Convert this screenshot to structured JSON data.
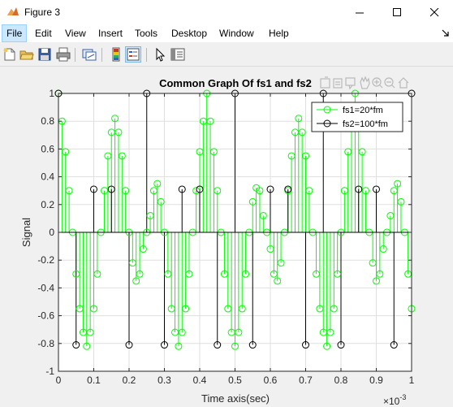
{
  "window": {
    "title": "Figure 3",
    "controls": [
      "minimize",
      "maximize",
      "close"
    ]
  },
  "menu": {
    "items": [
      "File",
      "Edit",
      "View",
      "Insert",
      "Tools",
      "Desktop",
      "Window",
      "Help"
    ],
    "active": "File"
  },
  "toolbar": {
    "buttons": [
      "new-figure-icon",
      "open-file-icon",
      "save-icon",
      "print-icon",
      "link-plot-icon",
      "insert-colorbar-icon",
      "insert-legend-icon",
      "pointer-icon",
      "property-inspector-icon"
    ]
  },
  "axes_toolbar": {
    "buttons": [
      "export-icon",
      "brush-icon",
      "data-tips-icon",
      "pan-icon",
      "zoom-in-icon",
      "zoom-out-icon",
      "home-icon"
    ]
  },
  "chart_data": {
    "type": "stem",
    "title": "Common Graph Of fs1 and fs2",
    "xlabel": "Time axis(sec)",
    "ylabel": "Signal",
    "x_exponent_label": "×10",
    "x_exponent_value": "-3",
    "xlim": [
      0,
      1
    ],
    "ylim": [
      -1,
      1
    ],
    "xticks": [
      "0",
      "0.1",
      "0.2",
      "0.3",
      "0.4",
      "0.5",
      "0.6",
      "0.7",
      "0.8",
      "0.9",
      "1"
    ],
    "yticks": [
      "-1",
      "-0.8",
      "-0.6",
      "-0.4",
      "-0.2",
      "0",
      "0.2",
      "0.4",
      "0.6",
      "0.8",
      "1"
    ],
    "grid": true,
    "legend_position": "top-right",
    "series": [
      {
        "name": "fs1=20*fm",
        "color": "#00ff00",
        "x": [
          0,
          0.01,
          0.02,
          0.03,
          0.04,
          0.05,
          0.06,
          0.07,
          0.08,
          0.09,
          0.1,
          0.11,
          0.12,
          0.13,
          0.14,
          0.15,
          0.16,
          0.17,
          0.18,
          0.19,
          0.2,
          0.21,
          0.22,
          0.23,
          0.24,
          0.25,
          0.26,
          0.27,
          0.28,
          0.29,
          0.3,
          0.31,
          0.32,
          0.33,
          0.34,
          0.35,
          0.36,
          0.37,
          0.38,
          0.39,
          0.4,
          0.41,
          0.42,
          0.43,
          0.44,
          0.45,
          0.46,
          0.47,
          0.48,
          0.49,
          0.5,
          0.51,
          0.52,
          0.53,
          0.54,
          0.55,
          0.56,
          0.57,
          0.58,
          0.59,
          0.6,
          0.61,
          0.62,
          0.63,
          0.64,
          0.65,
          0.66,
          0.67,
          0.68,
          0.69,
          0.7,
          0.71,
          0.72,
          0.73,
          0.74,
          0.75,
          0.76,
          0.77,
          0.78,
          0.79,
          0.8,
          0.81,
          0.82,
          0.83,
          0.84,
          0.85,
          0.86,
          0.87,
          0.88,
          0.89,
          0.9,
          0.91,
          0.92,
          0.93,
          0.94,
          0.95,
          0.96,
          0.97,
          0.98,
          0.99,
          1
        ],
        "values": [
          1,
          0.8,
          0.58,
          0.3,
          0,
          -0.3,
          -0.55,
          -0.72,
          -0.82,
          -0.72,
          -0.55,
          -0.3,
          0,
          0.3,
          0.55,
          0.72,
          0.82,
          0.72,
          0.55,
          0.3,
          0,
          -0.22,
          -0.35,
          -0.3,
          -0.12,
          0,
          0.12,
          0.3,
          0.35,
          0.22,
          0,
          -0.3,
          -0.55,
          -0.72,
          -0.82,
          -0.72,
          -0.55,
          -0.3,
          0,
          0.3,
          0.58,
          0.8,
          1,
          0.8,
          0.58,
          0.3,
          0,
          -0.3,
          -0.55,
          -0.72,
          -0.82,
          -0.72,
          -0.55,
          -0.3,
          0,
          0.22,
          0.32,
          0.3,
          0.12,
          0,
          -0.12,
          -0.3,
          -0.35,
          -0.22,
          0,
          0.3,
          0.55,
          0.72,
          0.82,
          0.72,
          0.55,
          0.3,
          0,
          -0.3,
          -0.55,
          -0.72,
          -0.82,
          -0.72,
          -0.55,
          -0.3,
          0,
          0.3,
          0.58,
          0.8,
          1,
          0.8,
          0.58,
          0.3,
          0,
          -0.22,
          -0.35,
          -0.3,
          -0.12,
          0,
          0.12,
          0.3,
          0.35,
          0.22,
          0,
          -0.3,
          -0.55
        ]
      },
      {
        "name": "fs2=100*fm",
        "color": "#000000",
        "x": [
          0,
          0.05,
          0.1,
          0.15,
          0.2,
          0.25,
          0.3,
          0.35,
          0.4,
          0.45,
          0.5,
          0.55,
          0.6,
          0.65,
          0.7,
          0.75,
          0.8,
          0.85,
          0.9,
          0.95,
          1
        ],
        "values": [
          1,
          -0.81,
          0.31,
          0.31,
          -0.81,
          1,
          -0.81,
          0.31,
          0.31,
          -0.81,
          1,
          -0.81,
          0.31,
          0.31,
          -0.81,
          1,
          -0.81,
          0.31,
          0.31,
          -0.81,
          1
        ]
      }
    ]
  }
}
